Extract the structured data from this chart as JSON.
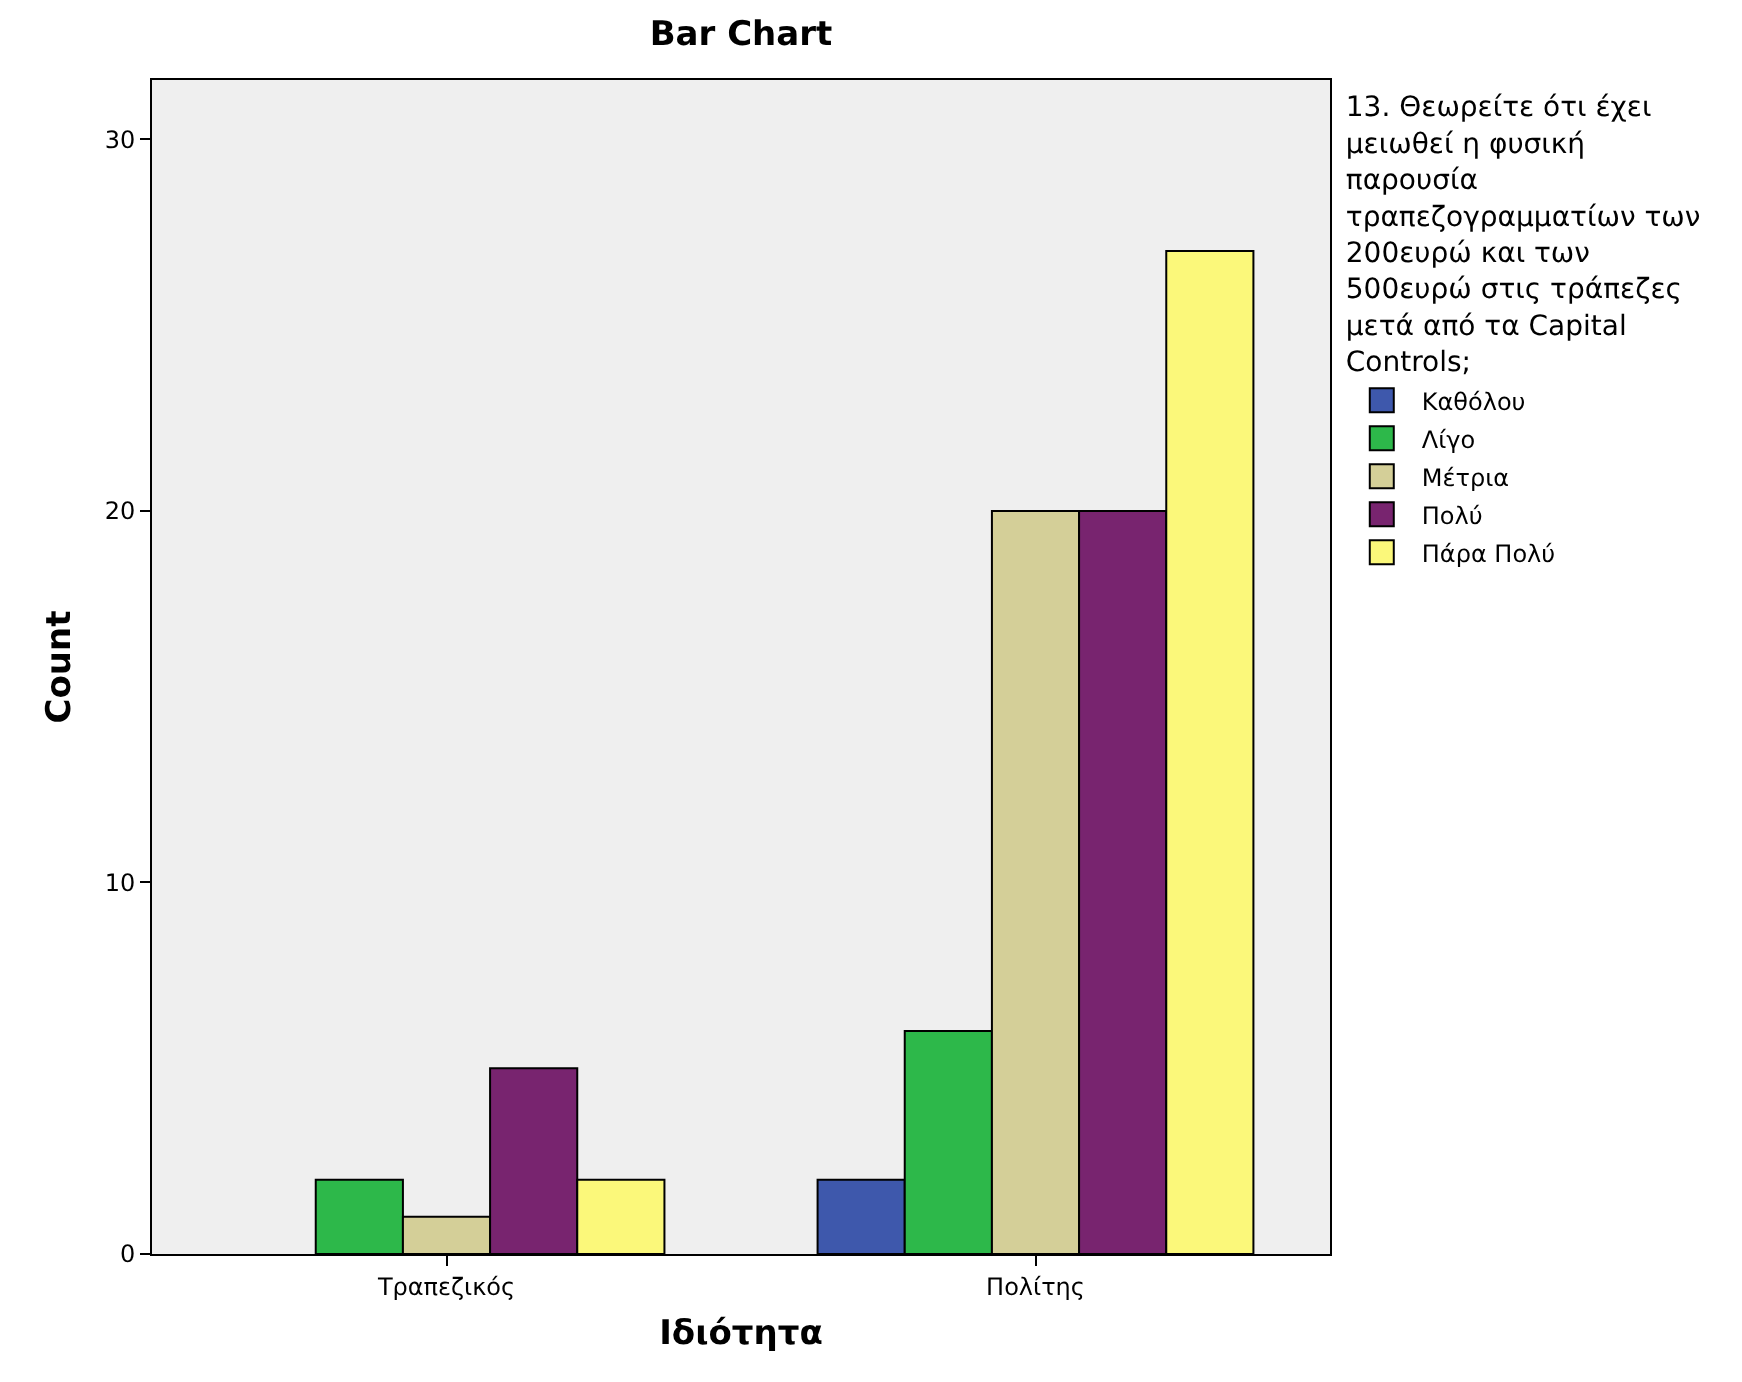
{
  "chart_data": {
    "type": "bar",
    "title": "Bar Chart",
    "xlabel": "Ιδιότητα",
    "ylabel": "Count",
    "legend_title": "13. Θεωρείτε ότι έχει μειωθεί η φυσική παρουσία τραπεζογραμματίων των 200ευρώ και των 500ευρώ στις τράπεζες μετά από τα Capital Controls;",
    "categories": [
      "Τραπεζικός",
      "Πολίτης"
    ],
    "series": [
      {
        "name": "Καθόλου",
        "color": "#3e58ac",
        "values": [
          null,
          2
        ]
      },
      {
        "name": "Λίγο",
        "color": "#2db84a",
        "values": [
          2,
          6
        ]
      },
      {
        "name": "Μέτρια",
        "color": "#d4cf98",
        "values": [
          1,
          20
        ]
      },
      {
        "name": "Πολύ",
        "color": "#78246f",
        "values": [
          5,
          20
        ]
      },
      {
        "name": "Πάρα Πολύ",
        "color": "#fbf87a",
        "values": [
          2,
          27
        ]
      }
    ],
    "ylim": [
      0,
      31.6
    ],
    "yticks": [
      0,
      10,
      20,
      30
    ],
    "grid": false,
    "legend": "top right"
  }
}
